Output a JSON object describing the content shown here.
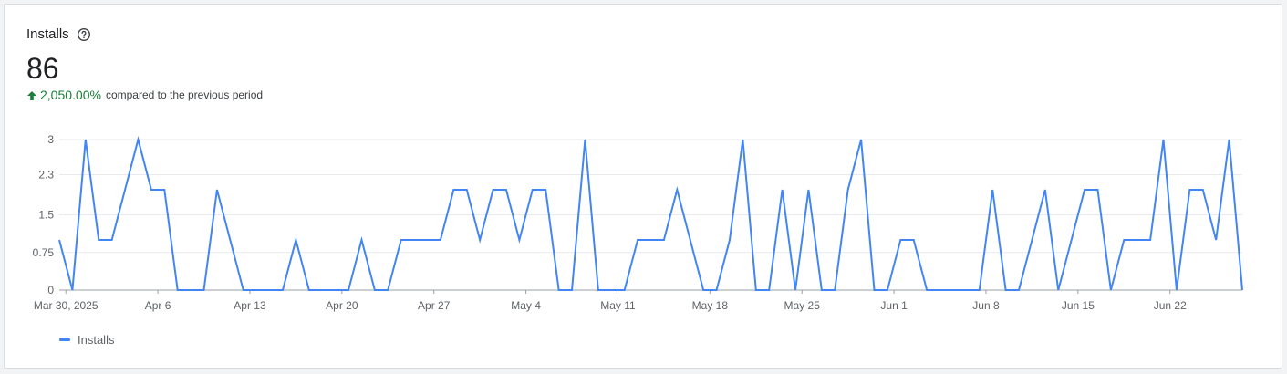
{
  "card": {
    "title": "Installs",
    "total": "86",
    "change_value": "2,050.00%",
    "change_text": "compared to the previous period"
  },
  "icons": {
    "help": "help-circle-icon",
    "trend": "arrow-up-icon"
  },
  "colors": {
    "series": "#4285f4",
    "positive": "#188038",
    "grid": "#e8eaed",
    "axis_text": "#5f6368"
  },
  "chart_data": {
    "type": "line",
    "x_tick_labels": [
      "Mar 30, 2025",
      "Apr 6",
      "Apr 13",
      "Apr 20",
      "Apr 27",
      "May 4",
      "May 11",
      "May 18",
      "May 25",
      "Jun 1",
      "Jun 8",
      "Jun 15",
      "Jun 22"
    ],
    "y_tick_labels": [
      "0",
      "0.75",
      "1.5",
      "2.3",
      "3"
    ],
    "ylim": [
      0,
      3
    ],
    "grid": true,
    "legend": "bottom-left",
    "series": [
      {
        "name": "Installs",
        "values": [
          1,
          0,
          3,
          1,
          1,
          2,
          3,
          2,
          2,
          0,
          0,
          0,
          2,
          1,
          0,
          0,
          0,
          0,
          1,
          0,
          0,
          0,
          0,
          1,
          0,
          0,
          1,
          1,
          1,
          1,
          2,
          2,
          1,
          2,
          2,
          1,
          2,
          2,
          0,
          0,
          3,
          0,
          0,
          0,
          1,
          1,
          1,
          2,
          1,
          0,
          0,
          1,
          3,
          0,
          0,
          2,
          0,
          2,
          0,
          0,
          2,
          3,
          0,
          0,
          1,
          1,
          0,
          0,
          0,
          0,
          0,
          2,
          0,
          0,
          1,
          2,
          0,
          1,
          2,
          2,
          0,
          1,
          1,
          1,
          3,
          0,
          2,
          2,
          1,
          3,
          0
        ]
      }
    ]
  }
}
